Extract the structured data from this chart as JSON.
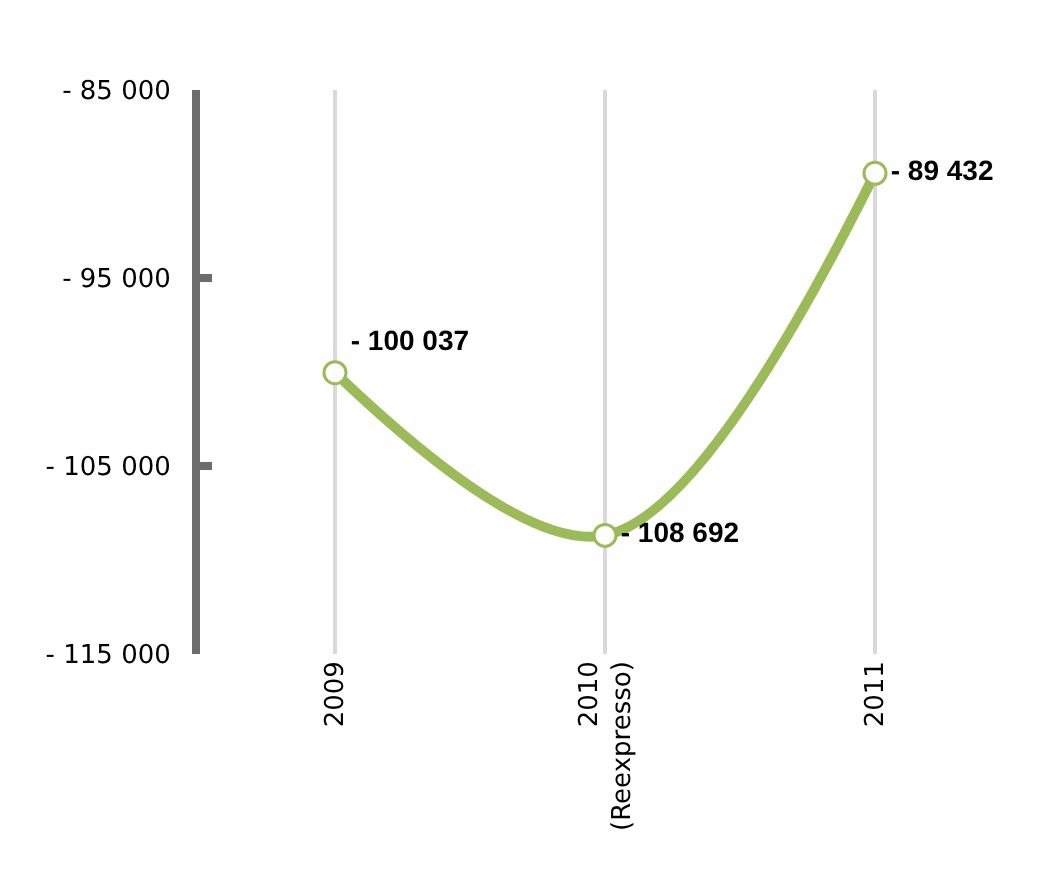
{
  "chart_data": {
    "type": "line",
    "categories": [
      "2009",
      "2010\n(Reexpresso)",
      "2011"
    ],
    "series": [
      {
        "color": "#9bbb59",
        "values": [
          -100037,
          -108692,
          -89432
        ],
        "value_labels": [
          "- 100 037",
          "- 108 692",
          "- 89 432"
        ]
      }
    ],
    "ylim": [
      -115000,
      -85000
    ],
    "yticks": [
      {
        "value": -115000,
        "label": "- 115 000"
      },
      {
        "value": -105000,
        "label": "- 105 000"
      },
      {
        "value": -95000,
        "label": "- 95 000"
      },
      {
        "value": -85000,
        "label": "- 85 000"
      }
    ],
    "grid": "x",
    "marker": "circle",
    "line_style": "solid"
  }
}
